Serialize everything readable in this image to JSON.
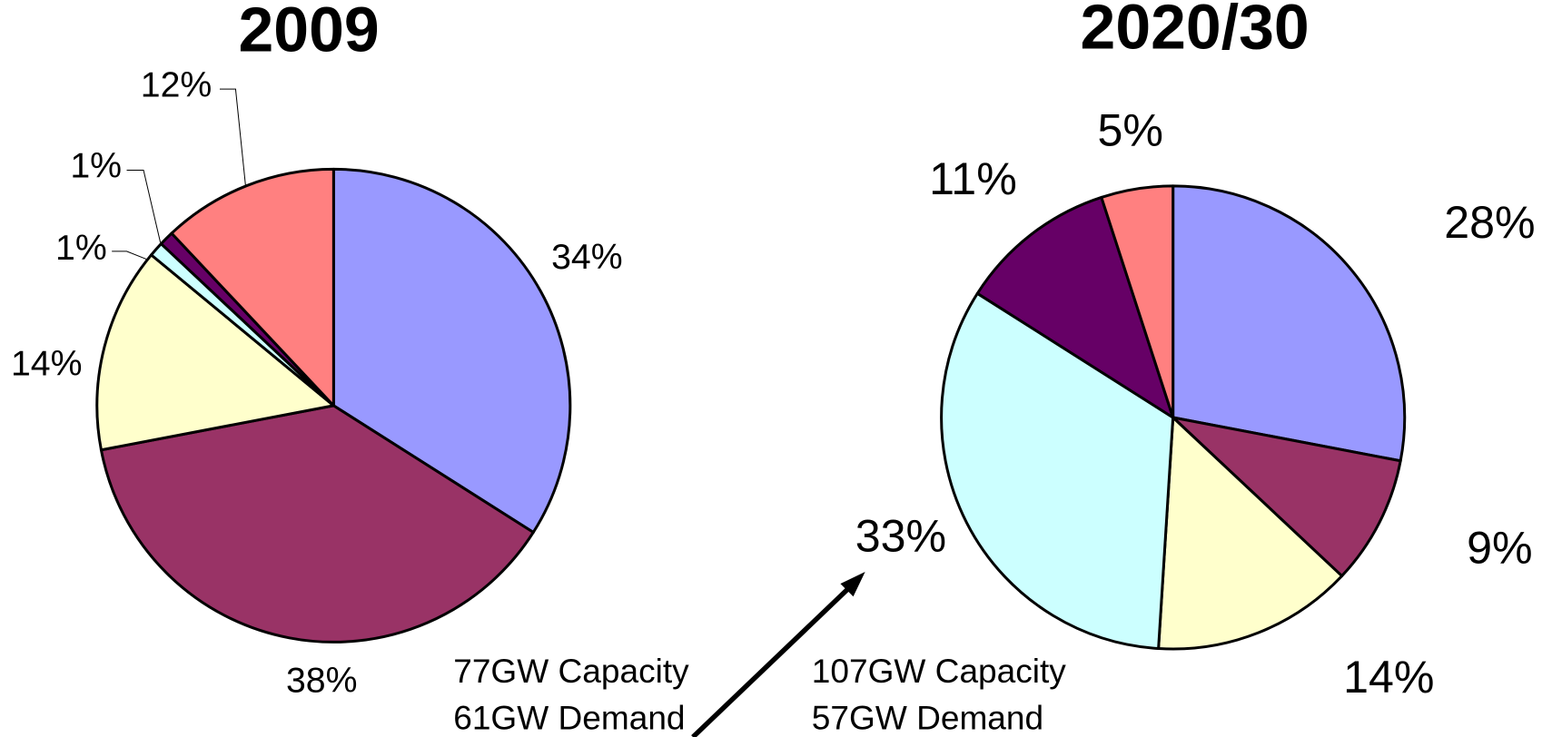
{
  "chart_data": [
    {
      "type": "pie",
      "title": "2009",
      "values": [
        34,
        38,
        14,
        1,
        1,
        12
      ],
      "value_labels": [
        "34%",
        "38%",
        "14%",
        "1%",
        "1%",
        "12%"
      ],
      "colors": [
        "#9999ff",
        "#993366",
        "#ffffcc",
        "#ccffff",
        "#660066",
        "#ff8080"
      ],
      "annotations": [
        "77GW Capacity",
        "61GW Demand"
      ]
    },
    {
      "type": "pie",
      "title": "2020/30",
      "values": [
        28,
        9,
        14,
        33,
        11,
        5
      ],
      "value_labels": [
        "28%",
        "9%",
        "14%",
        "33%",
        "11%",
        "5%"
      ],
      "colors": [
        "#9999ff",
        "#993366",
        "#ffffcc",
        "#ccffff",
        "#660066",
        "#ff8080"
      ],
      "annotations": [
        "107GW Capacity",
        "57GW Demand"
      ]
    }
  ]
}
